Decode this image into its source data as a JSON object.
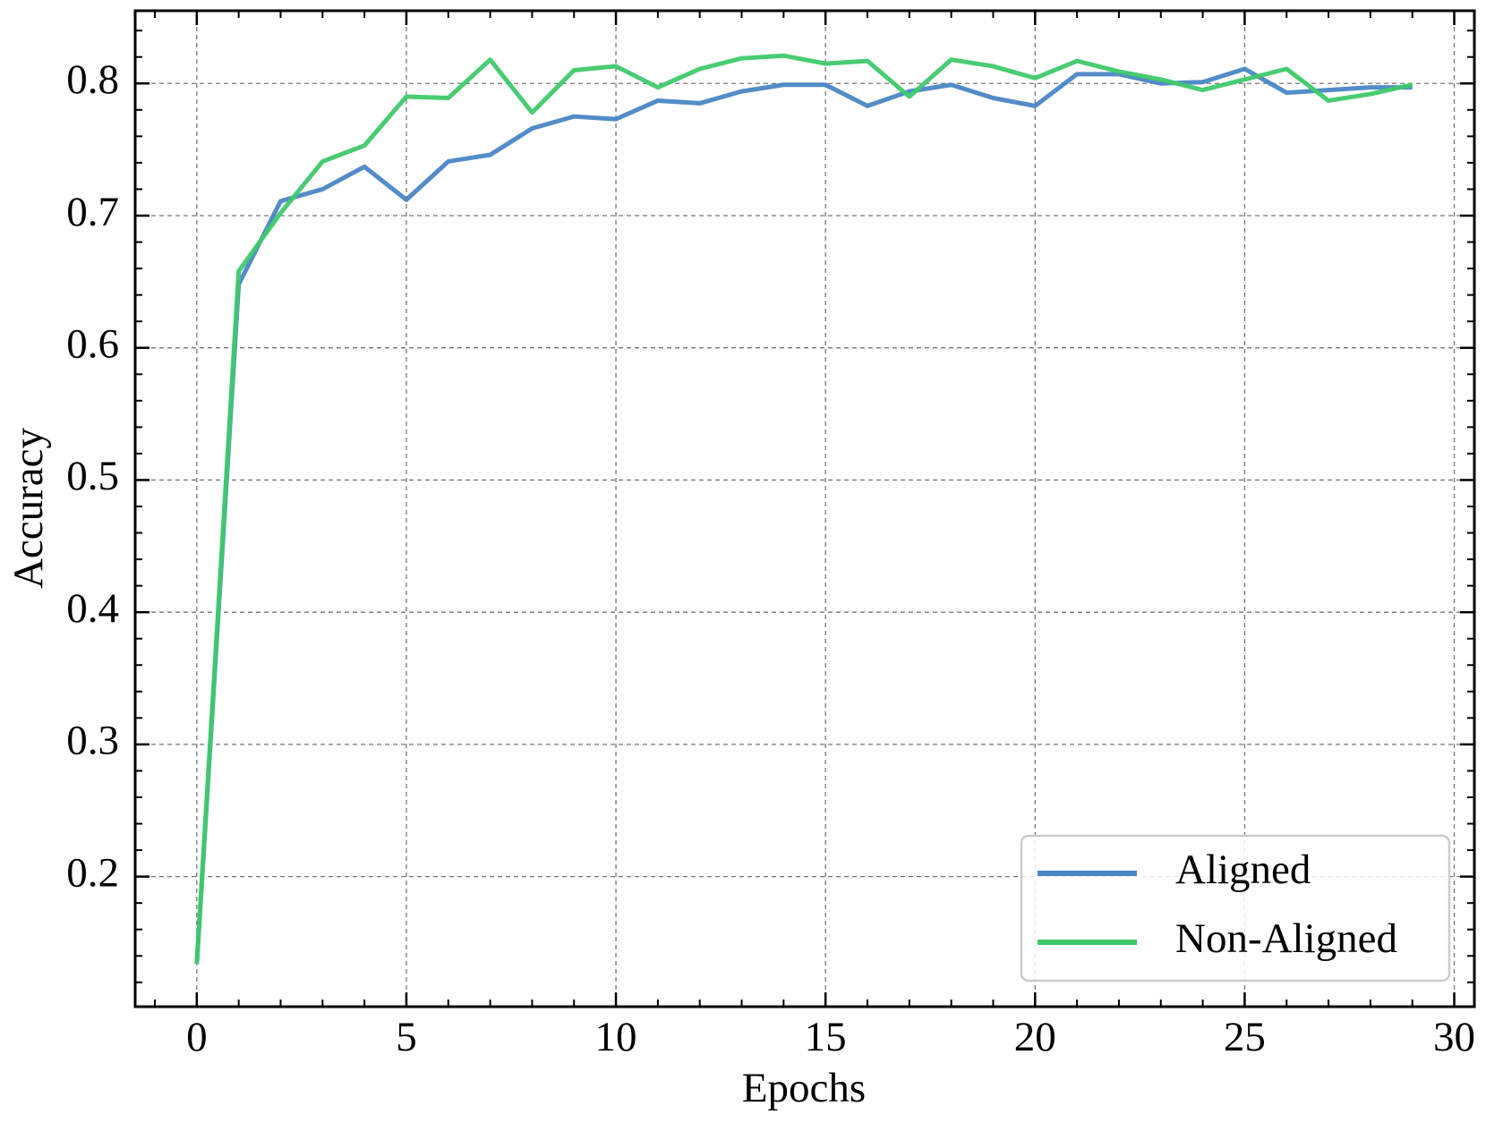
{
  "chart_data": {
    "type": "line",
    "xlabel": "Epochs",
    "ylabel": "Accuracy",
    "x": [
      0,
      1,
      2,
      3,
      4,
      5,
      6,
      7,
      8,
      9,
      10,
      11,
      12,
      13,
      14,
      15,
      16,
      17,
      18,
      19,
      20,
      21,
      22,
      23,
      24,
      25,
      26,
      27,
      28,
      29
    ],
    "series": [
      {
        "name": "Aligned",
        "color": "#4a86c5",
        "values": [
          0.134,
          0.648,
          0.711,
          0.72,
          0.737,
          0.712,
          0.741,
          0.746,
          0.766,
          0.775,
          0.773,
          0.787,
          0.785,
          0.794,
          0.799,
          0.799,
          0.783,
          0.794,
          0.799,
          0.789,
          0.783,
          0.807,
          0.807,
          0.8,
          0.801,
          0.811,
          0.793,
          0.795,
          0.797,
          0.797
        ]
      },
      {
        "name": "Non-Aligned",
        "color": "#3fc96c",
        "values": [
          0.134,
          0.658,
          0.702,
          0.741,
          0.753,
          0.79,
          0.789,
          0.818,
          0.778,
          0.81,
          0.813,
          0.797,
          0.811,
          0.819,
          0.821,
          0.815,
          0.817,
          0.79,
          0.818,
          0.813,
          0.804,
          0.817,
          0.809,
          0.803,
          0.795,
          0.803,
          0.811,
          0.787,
          0.792,
          0.799
        ]
      }
    ],
    "xlim": [
      -1.47,
      30.48
    ],
    "ylim": [
      0.1016,
      0.855
    ],
    "xticks": [
      0,
      5,
      10,
      15,
      20,
      25,
      30
    ],
    "yticks": [
      0.2,
      0.3,
      0.4,
      0.5,
      0.6,
      0.7,
      0.8
    ],
    "grid": true,
    "legend": "lower right"
  }
}
